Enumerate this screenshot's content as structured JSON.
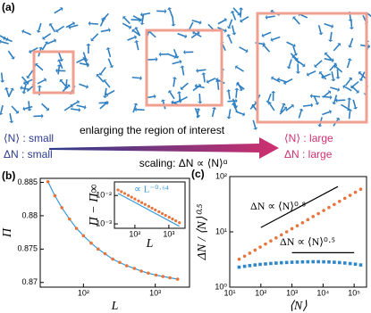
{
  "panel_a": {
    "label": "(a)",
    "left": [
      "⟨N⟩ : small",
      "ΔN : small"
    ],
    "middle": "enlarging the region of interest",
    "scaling": "scaling: ΔN ∝ ⟨N⟩ᵅ",
    "right": [
      "⟨N⟩ : large",
      "ΔN : large"
    ]
  },
  "chart_data": [
    {
      "type": "scatter",
      "panel_label": "(b)",
      "xlabel": "L",
      "ylabel": "Π",
      "xlog": true,
      "xlim": [
        25,
        3000
      ],
      "ylim": [
        0.8693,
        0.8856
      ],
      "xticks": [
        {
          "value": 100,
          "label": "10²"
        },
        {
          "value": 1000,
          "label": "10³"
        }
      ],
      "yticks": [
        0.87,
        0.875,
        0.88,
        0.885
      ],
      "series": [
        {
          "mode": "line",
          "color": "#3a9bd9",
          "x": [
            32,
            40,
            50,
            64,
            80,
            100,
            128,
            160,
            200,
            256,
            320,
            400,
            512,
            640,
            800,
            1024,
            1280,
            1600,
            2048
          ],
          "values": [
            0.8851,
            0.883,
            0.8812,
            0.8795,
            0.8781,
            0.877,
            0.8759,
            0.875,
            0.8743,
            0.8735,
            0.873,
            0.8725,
            0.8721,
            0.8717,
            0.8714,
            0.8711,
            0.8709,
            0.8707,
            0.8705
          ]
        },
        {
          "mode": "markers",
          "marker": "circle",
          "color": "#e8743b",
          "x": [
            32,
            40,
            50,
            64,
            80,
            100,
            128,
            160,
            200,
            256,
            320,
            400,
            512,
            640,
            800,
            1024,
            1280,
            1600,
            2048
          ],
          "values": [
            0.8851,
            0.883,
            0.8812,
            0.8795,
            0.8781,
            0.877,
            0.8759,
            0.875,
            0.8743,
            0.8735,
            0.873,
            0.8725,
            0.8721,
            0.8717,
            0.8714,
            0.8711,
            0.8709,
            0.8707,
            0.8705
          ]
        }
      ]
    },
    {
      "type": "scatter",
      "xlabel": "L",
      "ylabel": "Π − Π∞",
      "xlog": true,
      "ylog": true,
      "xlim": [
        25,
        3000
      ],
      "ylim": [
        0.0007,
        0.03
      ],
      "xticks": [
        {
          "value": 100,
          "label": "10²"
        },
        {
          "value": 1000,
          "label": "10³"
        }
      ],
      "yticks": [
        {
          "value": 0.001,
          "label": "10⁻³"
        },
        {
          "value": 0.01,
          "label": "10⁻²"
        }
      ],
      "annotations": [
        "∝ L⁻⁰·⁶⁴"
      ],
      "series": [
        {
          "mode": "line",
          "color": "#3a9bd9",
          "x": [
            32,
            2048
          ],
          "values": [
            0.0118,
            0.00082
          ]
        },
        {
          "mode": "markers",
          "marker": "circle",
          "color": "#e8743b",
          "x": [
            32,
            40,
            50,
            64,
            80,
            100,
            128,
            160,
            200,
            256,
            320,
            400,
            512,
            640,
            800,
            1024,
            1280,
            1600,
            2048
          ],
          "values": [
            0.01567,
            0.01358,
            0.01178,
            0.01005,
            0.00872,
            0.00756,
            0.00645,
            0.0056,
            0.00485,
            0.00414,
            0.00359,
            0.00311,
            0.00266,
            0.0023,
            0.002,
            0.00171,
            0.00148,
            0.00128,
            0.0011
          ]
        }
      ]
    },
    {
      "type": "scatter",
      "panel_label": "(c)",
      "xlabel": "⟨N⟩",
      "ylabel": "ΔN / ⟨N⟩⁰·⁵",
      "xlog": true,
      "ylog": true,
      "xlim": [
        10,
        250000
      ],
      "ylim": [
        1,
        100
      ],
      "xticks": [
        {
          "value": 10,
          "label": "10¹"
        },
        {
          "value": 100,
          "label": "10²"
        },
        {
          "value": 1000,
          "label": "10³"
        },
        {
          "value": 10000,
          "label": "10⁴"
        },
        {
          "value": 100000,
          "label": "10⁵"
        }
      ],
      "yticks": [
        {
          "value": 1,
          "label": "10⁰"
        },
        {
          "value": 10,
          "label": "10¹"
        },
        {
          "value": 100,
          "label": "10²"
        }
      ],
      "annotations": [
        "ΔN ∝ ⟨N⟩⁰·⁸",
        "ΔN ∝ ⟨N⟩⁰·⁵"
      ],
      "series": [
        {
          "mode": "markers",
          "marker": "circle",
          "color": "#e8743b",
          "x": [
            20,
            30,
            44,
            65,
            95,
            141,
            209,
            309,
            457,
            676,
            1000,
            1479,
            2188,
            3236,
            4786,
            7079,
            10470,
            15490,
            22910,
            33880,
            50120,
            74130,
            109600,
            162200
          ],
          "values": [
            3.2,
            3.63,
            4.12,
            4.68,
            5.31,
            6.03,
            6.84,
            7.77,
            8.82,
            10.0,
            11.4,
            12.9,
            14.6,
            16.6,
            18.9,
            21.4,
            24.3,
            27.6,
            31.3,
            35.6,
            40.4,
            45.8,
            52.0,
            59.1
          ]
        },
        {
          "mode": "markers",
          "marker": "square",
          "color": "#2f86c8",
          "x": [
            20,
            30,
            44,
            65,
            95,
            141,
            209,
            309,
            457,
            676,
            1000,
            1479,
            2188,
            3236,
            4786,
            7079,
            10470,
            15490,
            22910,
            33880,
            50120,
            74130,
            109600,
            162200
          ],
          "values": [
            2.3,
            2.38,
            2.45,
            2.52,
            2.58,
            2.63,
            2.68,
            2.72,
            2.76,
            2.79,
            2.82,
            2.84,
            2.86,
            2.87,
            2.88,
            2.88,
            2.87,
            2.85,
            2.82,
            2.78,
            2.73,
            2.67,
            2.6,
            2.52
          ]
        },
        {
          "mode": "line",
          "color": "#000000",
          "x": [
            100,
            30000
          ],
          "values": [
            12,
            66
          ]
        },
        {
          "mode": "line",
          "color": "#000000",
          "x": [
            1000,
            100000
          ],
          "values": [
            4.2,
            4.2
          ]
        }
      ]
    }
  ]
}
